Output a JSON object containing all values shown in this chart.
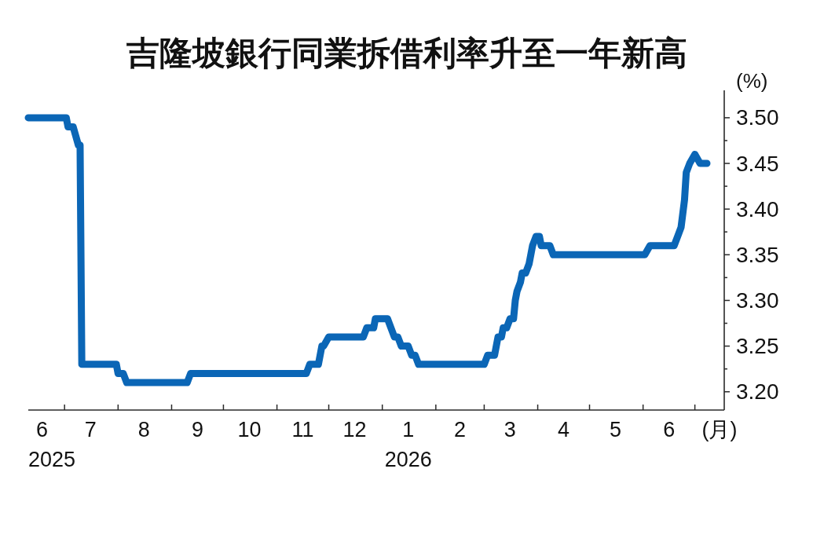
{
  "chart_data": {
    "type": "line",
    "title": "吉隆坡銀行同業拆借利率升至一年新高",
    "xlabel": "(月)",
    "ylabel": "(%)",
    "color": "#0b66b6",
    "x": [
      "2025-06-10",
      "2025-07-02",
      "2025-07-03",
      "2025-07-06",
      "2025-07-09",
      "2025-07-10",
      "2025-07-11",
      "2025-07-31",
      "2025-08-01",
      "2025-08-04",
      "2025-08-06",
      "2025-09-10",
      "2025-09-12",
      "2025-11-18",
      "2025-11-20",
      "2025-11-25",
      "2025-11-27",
      "2025-11-28",
      "2025-12-01",
      "2025-12-21",
      "2025-12-23",
      "2025-12-27",
      "2025-12-28",
      "2026-01-04",
      "2026-01-06",
      "2026-01-08",
      "2026-01-10",
      "2026-01-12",
      "2026-01-16",
      "2026-01-18",
      "2026-01-20",
      "2026-01-22",
      "2026-03-01",
      "2026-03-03",
      "2026-03-07",
      "2026-03-08",
      "2026-03-09",
      "2026-03-11",
      "2026-03-12",
      "2026-03-14",
      "2026-03-16",
      "2026-03-18",
      "2026-03-19",
      "2026-03-20",
      "2026-03-22",
      "2026-03-23",
      "2026-03-25",
      "2026-03-27",
      "2026-03-29",
      "2026-03-31",
      "2026-04-02",
      "2026-04-03",
      "2026-04-08",
      "2026-04-10",
      "2026-06-02",
      "2026-06-05",
      "2026-06-19",
      "2026-06-21",
      "2026-06-23",
      "2026-06-25",
      "2026-06-26",
      "2026-06-28",
      "2026-07-01",
      "2026-07-04",
      "2026-07-08"
    ],
    "values": [
      3.5,
      3.5,
      3.49,
      3.49,
      3.47,
      3.47,
      3.23,
      3.23,
      3.22,
      3.22,
      3.21,
      3.21,
      3.22,
      3.22,
      3.23,
      3.23,
      3.25,
      3.25,
      3.26,
      3.26,
      3.27,
      3.27,
      3.28,
      3.28,
      3.27,
      3.26,
      3.26,
      3.25,
      3.25,
      3.24,
      3.24,
      3.23,
      3.23,
      3.24,
      3.24,
      3.25,
      3.26,
      3.26,
      3.27,
      3.27,
      3.28,
      3.28,
      3.3,
      3.31,
      3.32,
      3.33,
      3.33,
      3.34,
      3.36,
      3.37,
      3.37,
      3.36,
      3.36,
      3.35,
      3.35,
      3.36,
      3.36,
      3.37,
      3.38,
      3.41,
      3.44,
      3.45,
      3.46,
      3.45,
      3.45
    ],
    "xlim": [
      "2025-06-10",
      "2026-07-18"
    ],
    "xticks": [
      {
        "value": "2025-06-18",
        "label": "6\n2025"
      },
      {
        "value": "2025-07-01",
        "label": null
      },
      {
        "value": "2025-07-16",
        "label": "7"
      },
      {
        "value": "2025-08-01",
        "label": null
      },
      {
        "value": "2025-08-16",
        "label": "8"
      },
      {
        "value": "2025-09-01",
        "label": null
      },
      {
        "value": "2025-09-16",
        "label": "9"
      },
      {
        "value": "2025-10-01",
        "label": null
      },
      {
        "value": "2025-10-16",
        "label": "10"
      },
      {
        "value": "2025-11-01",
        "label": null
      },
      {
        "value": "2025-11-16",
        "label": "11"
      },
      {
        "value": "2025-12-01",
        "label": null
      },
      {
        "value": "2025-12-16",
        "label": "12"
      },
      {
        "value": "2026-01-01",
        "label": null
      },
      {
        "value": "2026-01-16",
        "label": "1\n2026"
      },
      {
        "value": "2026-02-01",
        "label": null
      },
      {
        "value": "2026-02-15",
        "label": "2"
      },
      {
        "value": "2026-03-01",
        "label": null
      },
      {
        "value": "2026-03-16",
        "label": "3"
      },
      {
        "value": "2026-04-01",
        "label": null
      },
      {
        "value": "2026-04-16",
        "label": "4"
      },
      {
        "value": "2026-05-01",
        "label": null
      },
      {
        "value": "2026-05-16",
        "label": "5"
      },
      {
        "value": "2026-06-01",
        "label": null
      },
      {
        "value": "2026-06-16",
        "label": "6"
      },
      {
        "value": "2026-07-01",
        "label": null
      }
    ],
    "ylim": [
      3.18,
      3.53
    ],
    "yticks": [
      {
        "value": 3.2,
        "label": "3.20"
      },
      {
        "value": 3.225,
        "label": null
      },
      {
        "value": 3.25,
        "label": "3.25"
      },
      {
        "value": 3.275,
        "label": null
      },
      {
        "value": 3.3,
        "label": "3.30"
      },
      {
        "value": 3.325,
        "label": null
      },
      {
        "value": 3.35,
        "label": "3.35"
      },
      {
        "value": 3.375,
        "label": null
      },
      {
        "value": 3.4,
        "label": "3.40"
      },
      {
        "value": 3.425,
        "label": null
      },
      {
        "value": 3.45,
        "label": "3.45"
      },
      {
        "value": 3.475,
        "label": null
      },
      {
        "value": 3.5,
        "label": "3.50"
      }
    ]
  }
}
